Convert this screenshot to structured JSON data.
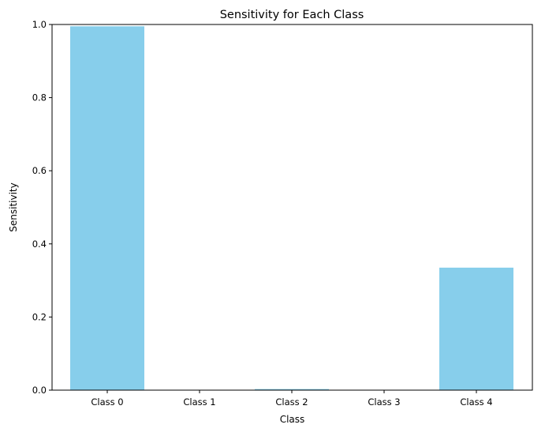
{
  "chart_data": {
    "type": "bar",
    "title": "Sensitivity for Each Class",
    "xlabel": "Class",
    "ylabel": "Sensitivity",
    "categories": [
      "Class 0",
      "Class 1",
      "Class 2",
      "Class 3",
      "Class 4"
    ],
    "values": [
      0.995,
      0.0,
      0.003,
      0.0,
      0.335
    ],
    "ylim": [
      0,
      1.0
    ],
    "yticks": [
      "0.0",
      "0.2",
      "0.4",
      "0.6",
      "0.8",
      "1.0"
    ],
    "grid": false,
    "bar_color": "#87CEEB"
  }
}
